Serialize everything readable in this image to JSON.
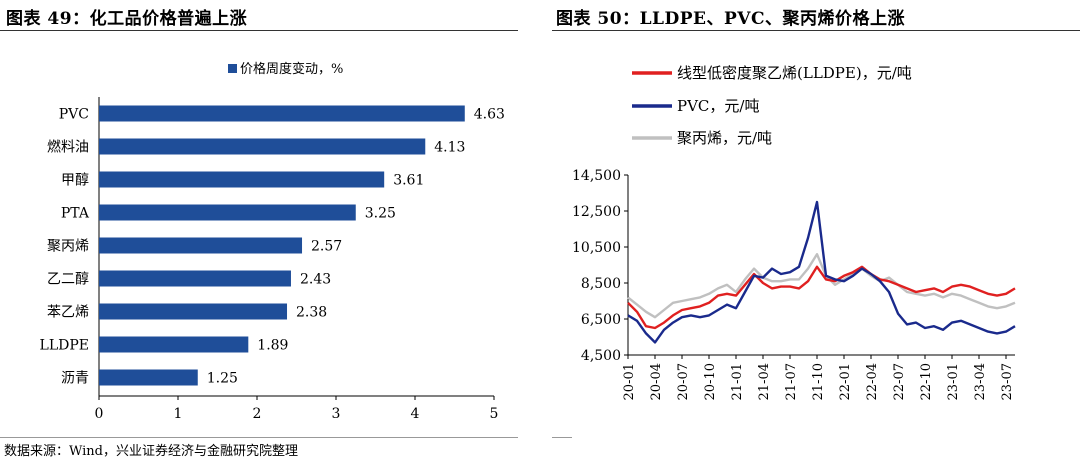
{
  "left_title": "图表 49：化工品价格普遍上涨",
  "right_title": "图表 50：LLDPE、PVC、聚丙烯价格上涨",
  "footer": "数据来源：Wind，兴业证券经济与金融研究院整理",
  "colors": {
    "bar": "#1f4e99",
    "lldpe": "#e02020",
    "pvc": "#1a2a8c",
    "pp": "#c0c0c0"
  },
  "chart_data": [
    {
      "type": "bar",
      "orientation": "horizontal",
      "title": "",
      "legend": [
        "价格周度变动，%"
      ],
      "categories": [
        "PVC",
        "燃料油",
        "甲醇",
        "PTA",
        "聚丙烯",
        "乙二醇",
        "苯乙烯",
        "LLDPE",
        "沥青"
      ],
      "values": [
        4.63,
        4.13,
        3.61,
        3.25,
        2.57,
        2.43,
        2.38,
        1.89,
        1.25
      ],
      "data_labels": [
        "4.63",
        "4.13",
        "3.61",
        "3.25",
        "2.57",
        "2.43",
        "2.38",
        "1.89",
        "1.25"
      ],
      "xlim": [
        0,
        5
      ],
      "xticks": [
        "0",
        "1",
        "2",
        "3",
        "4",
        "5"
      ],
      "grid": false,
      "legend_position": "top"
    },
    {
      "type": "line",
      "title": "",
      "ylim": [
        4500,
        14500
      ],
      "yticks": [
        "4,500",
        "6,500",
        "8,500",
        "10,500",
        "12,500",
        "14,500"
      ],
      "xticks": [
        "20-01",
        "20-04",
        "20-07",
        "20-10",
        "21-01",
        "21-04",
        "21-07",
        "21-10",
        "22-01",
        "22-04",
        "22-07",
        "22-10",
        "23-01",
        "23-04",
        "23-07"
      ],
      "x_start": "20-01",
      "x_end": "23-08",
      "legend_position": "top-left",
      "series": [
        {
          "name": "线型低密度聚乙烯(LLDPE)，元/吨",
          "color_key": "lldpe",
          "x": [
            "20-01",
            "20-02",
            "20-03",
            "20-04",
            "20-05",
            "20-06",
            "20-07",
            "20-08",
            "20-09",
            "20-10",
            "20-11",
            "20-12",
            "21-01",
            "21-02",
            "21-03",
            "21-04",
            "21-05",
            "21-06",
            "21-07",
            "21-08",
            "21-09",
            "21-10",
            "21-11",
            "21-12",
            "22-01",
            "22-02",
            "22-03",
            "22-04",
            "22-05",
            "22-06",
            "22-07",
            "22-08",
            "22-09",
            "22-10",
            "22-11",
            "22-12",
            "23-01",
            "23-02",
            "23-03",
            "23-04",
            "23-05",
            "23-06",
            "23-07",
            "23-08"
          ],
          "values": [
            7400,
            6900,
            6100,
            6000,
            6300,
            6700,
            7000,
            7100,
            7200,
            7400,
            7800,
            7900,
            7800,
            8400,
            9000,
            8500,
            8200,
            8300,
            8300,
            8200,
            8600,
            9400,
            8700,
            8600,
            8900,
            9100,
            9400,
            9000,
            8700,
            8600,
            8400,
            8200,
            8000,
            8100,
            8200,
            8000,
            8300,
            8400,
            8300,
            8100,
            7900,
            7800,
            7900,
            8200
          ]
        },
        {
          "name": "PVC，元/吨",
          "color_key": "pvc",
          "x": [
            "20-01",
            "20-02",
            "20-03",
            "20-04",
            "20-05",
            "20-06",
            "20-07",
            "20-08",
            "20-09",
            "20-10",
            "20-11",
            "20-12",
            "21-01",
            "21-02",
            "21-03",
            "21-04",
            "21-05",
            "21-06",
            "21-07",
            "21-08",
            "21-09",
            "21-10",
            "21-11",
            "21-12",
            "22-01",
            "22-02",
            "22-03",
            "22-04",
            "22-05",
            "22-06",
            "22-07",
            "22-08",
            "22-09",
            "22-10",
            "22-11",
            "22-12",
            "23-01",
            "23-02",
            "23-03",
            "23-04",
            "23-05",
            "23-06",
            "23-07",
            "23-08"
          ],
          "values": [
            6700,
            6400,
            5700,
            5200,
            5900,
            6300,
            6600,
            6700,
            6600,
            6700,
            7000,
            7300,
            7100,
            8000,
            8900,
            8800,
            9300,
            9000,
            9100,
            9400,
            11000,
            13000,
            8900,
            8700,
            8600,
            8900,
            9300,
            9000,
            8600,
            8000,
            6800,
            6200,
            6300,
            6000,
            6100,
            5900,
            6300,
            6400,
            6200,
            6000,
            5800,
            5700,
            5800,
            6100
          ]
        },
        {
          "name": "聚丙烯，元/吨",
          "color_key": "pp",
          "x": [
            "20-01",
            "20-02",
            "20-03",
            "20-04",
            "20-05",
            "20-06",
            "20-07",
            "20-08",
            "20-09",
            "20-10",
            "20-11",
            "20-12",
            "21-01",
            "21-02",
            "21-03",
            "21-04",
            "21-05",
            "21-06",
            "21-07",
            "21-08",
            "21-09",
            "21-10",
            "21-11",
            "21-12",
            "22-01",
            "22-02",
            "22-03",
            "22-04",
            "22-05",
            "22-06",
            "22-07",
            "22-08",
            "22-09",
            "22-10",
            "22-11",
            "22-12",
            "23-01",
            "23-02",
            "23-03",
            "23-04",
            "23-05",
            "23-06",
            "23-07",
            "23-08"
          ],
          "values": [
            7700,
            7300,
            6900,
            6600,
            7000,
            7400,
            7500,
            7600,
            7700,
            7900,
            8200,
            8400,
            8000,
            8700,
            9300,
            8800,
            8600,
            8600,
            8700,
            8700,
            9300,
            10100,
            8900,
            8400,
            8700,
            9000,
            9300,
            8900,
            8600,
            8800,
            8400,
            8000,
            7900,
            7800,
            7900,
            7700,
            7900,
            7800,
            7600,
            7400,
            7200,
            7100,
            7200,
            7400
          ]
        }
      ]
    }
  ]
}
